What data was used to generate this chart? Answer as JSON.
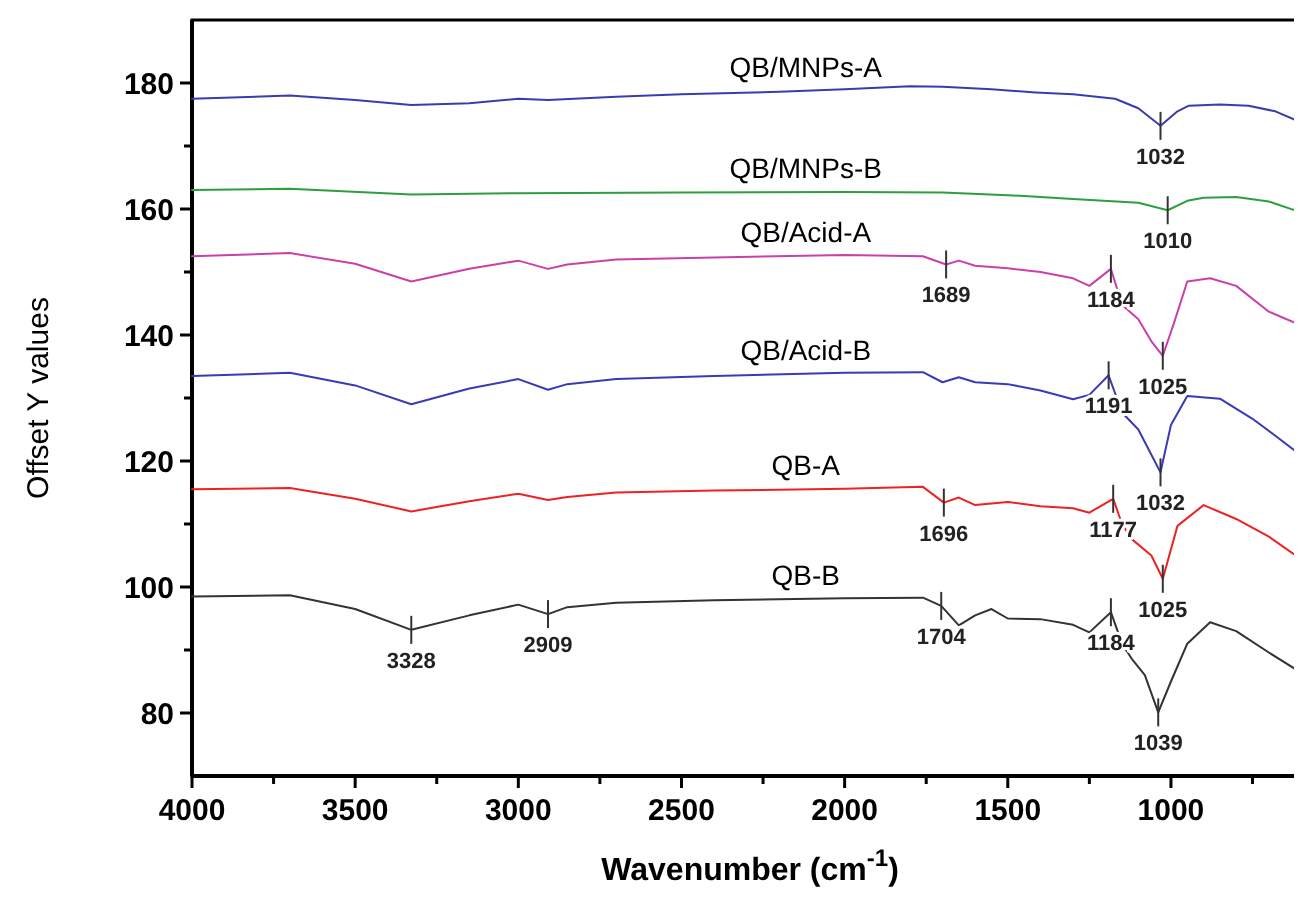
{
  "chart_data": {
    "type": "line",
    "xlabel": "Wavenumber (cm$^{-1}$)",
    "ylabel": "Offset Y values",
    "xlim": [
      4000,
      580
    ],
    "ylim": [
      70,
      190
    ],
    "xticks": [
      4000,
      {
        "value": 3750,
        "label": null
      },
      3500,
      {
        "value": 3250,
        "label": null
      },
      3000,
      {
        "value": 2750,
        "label": null
      },
      2500,
      {
        "value": 2250,
        "label": null
      },
      2000,
      {
        "value": 1750,
        "label": null
      },
      1500,
      {
        "value": 1250,
        "label": null
      },
      1000,
      {
        "value": 750,
        "label": null
      }
    ],
    "yticks": [
      80,
      {
        "value": 90,
        "label": null
      },
      100,
      {
        "value": 110,
        "label": null
      },
      120,
      {
        "value": 130,
        "label": null
      },
      140,
      {
        "value": 150,
        "label": null
      },
      160,
      {
        "value": 170,
        "label": null
      },
      180
    ],
    "grid": false,
    "line_style": "solid",
    "series": [
      {
        "name": "QB/MNPs-A",
        "color": "#3b3bb0",
        "x": [
          4000,
          3700,
          3500,
          3328,
          3150,
          3000,
          2909,
          2700,
          2500,
          2200,
          2000,
          1800,
          1700,
          1550,
          1415,
          1300,
          1171,
          1100,
          1032,
          980,
          945,
          850,
          762,
          680,
          604
        ],
        "values": [
          177.5,
          178,
          177.3,
          176.5,
          176.8,
          177.5,
          177.3,
          177.8,
          178.2,
          178.6,
          179,
          179.5,
          179.4,
          179,
          178.5,
          178.2,
          177.5,
          176,
          173.2,
          175.5,
          176.4,
          176.6,
          176.4,
          175.5,
          173.8
        ]
      },
      {
        "name": "QB/MNPs-B",
        "color": "#2e9e3e",
        "x": [
          4000,
          3700,
          3328,
          3000,
          2500,
          2000,
          1700,
          1500,
          1300,
          1100,
          1010,
          950,
          900,
          800,
          700,
          604
        ],
        "values": [
          163,
          163.2,
          162.3,
          162.5,
          162.6,
          162.7,
          162.6,
          162.2,
          161.6,
          161,
          159.8,
          161.3,
          161.8,
          161.9,
          161.2,
          159.5
        ]
      },
      {
        "name": "QB/Acid-A",
        "color": "#c940a8",
        "x": [
          4000,
          3700,
          3500,
          3328,
          3150,
          3000,
          2909,
          2850,
          2700,
          2400,
          2000,
          1760,
          1689,
          1650,
          1600,
          1500,
          1400,
          1300,
          1250,
          1184,
          1150,
          1100,
          1060,
          1025,
          990,
          950,
          880,
          800,
          700,
          604
        ],
        "values": [
          152.5,
          153,
          151.3,
          148.5,
          150.5,
          151.8,
          150.5,
          151.2,
          152,
          152.3,
          152.7,
          152.5,
          151.2,
          151.8,
          151,
          150.6,
          150,
          149,
          147.8,
          150.5,
          144.8,
          142.5,
          139,
          136.7,
          142,
          148.5,
          149,
          147.8,
          143.7,
          141.6
        ]
      },
      {
        "name": "QB/Acid-B",
        "color": "#3a3ab8",
        "x": [
          4000,
          3700,
          3500,
          3328,
          3150,
          3000,
          2909,
          2850,
          2700,
          2400,
          2000,
          1760,
          1700,
          1650,
          1600,
          1500,
          1400,
          1300,
          1250,
          1191,
          1150,
          1100,
          1060,
          1032,
          1000,
          950,
          850,
          750,
          680,
          604
        ],
        "values": [
          133.5,
          134,
          132,
          129,
          131.5,
          133,
          131.3,
          132.2,
          133,
          133.5,
          134,
          134.1,
          132.5,
          133.3,
          132.5,
          132.2,
          131.2,
          129.8,
          130.5,
          133.6,
          127.7,
          125,
          121,
          118.2,
          125.7,
          130.3,
          129.9,
          126.7,
          124,
          121
        ]
      },
      {
        "name": "QB-A",
        "color": "#ee2222",
        "x": [
          4000,
          3700,
          3500,
          3328,
          3150,
          3000,
          2909,
          2850,
          2700,
          2400,
          2000,
          1760,
          1696,
          1650,
          1600,
          1500,
          1400,
          1300,
          1250,
          1177,
          1150,
          1120,
          1060,
          1025,
          980,
          900,
          800,
          700,
          604
        ],
        "values": [
          115.5,
          115.7,
          114,
          112,
          113.6,
          114.8,
          113.8,
          114.3,
          115,
          115.3,
          115.6,
          115.9,
          113.4,
          114.2,
          113,
          113.5,
          112.8,
          112.5,
          111.8,
          114,
          110,
          107.6,
          105,
          101.3,
          109.7,
          113,
          110.8,
          108,
          104.5
        ]
      },
      {
        "name": "QB-B",
        "color": "#333333",
        "x": [
          4000,
          3700,
          3500,
          3328,
          3150,
          3000,
          2909,
          2850,
          2700,
          2400,
          2000,
          1760,
          1704,
          1650,
          1600,
          1550,
          1500,
          1400,
          1300,
          1250,
          1184,
          1150,
          1120,
          1080,
          1039,
          1000,
          950,
          880,
          800,
          700,
          620
        ],
        "values": [
          98.5,
          98.7,
          96.5,
          93.2,
          95.5,
          97.2,
          95.7,
          96.8,
          97.5,
          97.9,
          98.2,
          98.3,
          97,
          93.9,
          95.5,
          96.5,
          95,
          94.9,
          94,
          92.8,
          96,
          91,
          88.6,
          86,
          80.1,
          85,
          91,
          94.4,
          93,
          89.6,
          87
        ]
      }
    ],
    "annotations": [
      {
        "text": "3328",
        "x": 3328,
        "y": 93.2
      },
      {
        "text": "2909",
        "x": 2909,
        "y": 95.7
      },
      {
        "text": "1032",
        "x": 1032,
        "y": 173.2
      },
      {
        "text": "1010",
        "x": 1010,
        "y": 159.8
      },
      {
        "text": "1689",
        "x": 1689,
        "y": 151.2
      },
      {
        "text": "1184",
        "x": 1184,
        "y": 150.5
      },
      {
        "text": "1025",
        "x": 1025,
        "y": 136.7
      },
      {
        "text": "1191",
        "x": 1191,
        "y": 133.6
      },
      {
        "text": "1032",
        "x": 1032,
        "y": 118.2
      },
      {
        "text": "1696",
        "x": 1696,
        "y": 113.4
      },
      {
        "text": "1177",
        "x": 1177,
        "y": 114
      },
      {
        "text": "1025",
        "x": 1025,
        "y": 101.3
      },
      {
        "text": "1704",
        "x": 1704,
        "y": 97
      },
      {
        "text": "1184",
        "x": 1184,
        "y": 96
      },
      {
        "text": "1039",
        "x": 1039,
        "y": 80.1
      }
    ]
  }
}
